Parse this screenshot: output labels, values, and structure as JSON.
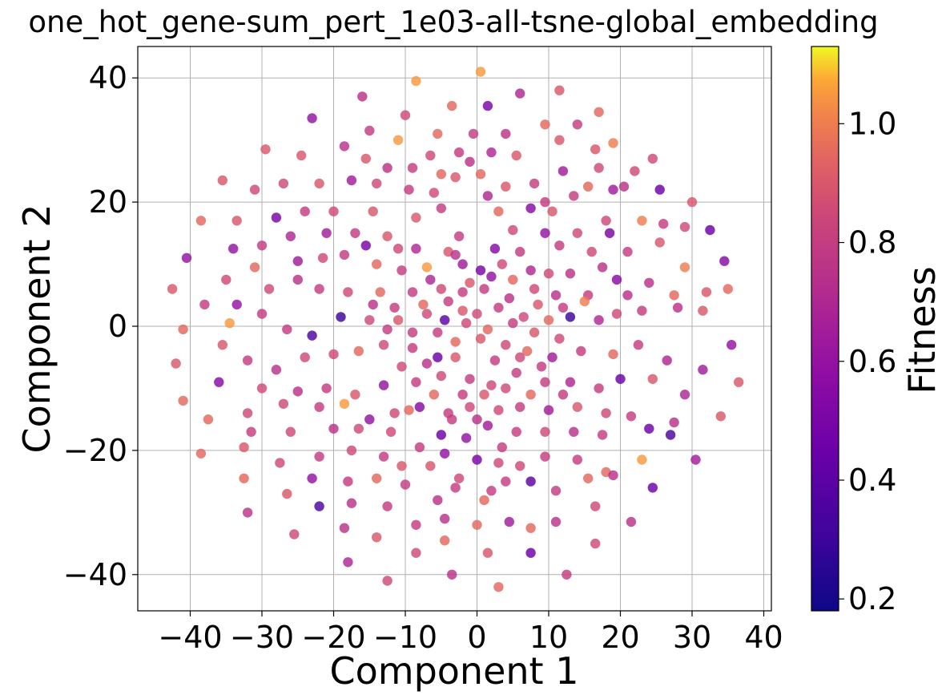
{
  "chart_data": {
    "type": "scatter",
    "title": "one_hot_gene-sum_pert_1e03-all-tsne-global_embedding",
    "xlabel": "Component 1",
    "ylabel": "Component 2",
    "xlim": [
      -47,
      41
    ],
    "ylim": [
      -46,
      45
    ],
    "xticks": [
      -40,
      -30,
      -20,
      -10,
      0,
      10,
      20,
      30,
      40
    ],
    "yticks": [
      -40,
      -20,
      0,
      20,
      40
    ],
    "xtick_labels": [
      "−40",
      "−30",
      "−20",
      "−10",
      "0",
      "10",
      "20",
      "30",
      "40"
    ],
    "ytick_labels": [
      "−40",
      "−20",
      "0",
      "20",
      "40"
    ],
    "grid": true,
    "colorbar": {
      "label": "Fitness",
      "colormap": "plasma",
      "range": [
        0.18,
        1.13
      ],
      "ticks": [
        0.2,
        0.4,
        0.6,
        0.8,
        1.0
      ],
      "tick_labels": [
        "0.2",
        "0.4",
        "0.6",
        "0.8",
        "1.0"
      ]
    },
    "points": [
      [
        0.5,
        41,
        1.05
      ],
      [
        -8.5,
        39.5,
        1.05
      ],
      [
        11.5,
        38,
        0.9
      ],
      [
        6,
        37.5,
        0.7
      ],
      [
        -16,
        37,
        0.75
      ],
      [
        1.5,
        35.5,
        0.5
      ],
      [
        -3.5,
        35.5,
        0.95
      ],
      [
        17,
        34.5,
        0.95
      ],
      [
        -23,
        33.5,
        0.6
      ],
      [
        -10,
        34,
        0.85
      ],
      [
        14,
        32.5,
        0.8
      ],
      [
        9.5,
        32.5,
        0.95
      ],
      [
        -15,
        31.5,
        0.8
      ],
      [
        -5.5,
        31,
        0.95
      ],
      [
        -0.5,
        31,
        0.8
      ],
      [
        4,
        31,
        0.75
      ],
      [
        19,
        29.5,
        1.0
      ],
      [
        -11,
        30,
        1.05
      ],
      [
        11.5,
        30,
        0.9
      ],
      [
        -29.5,
        28.5,
        0.9
      ],
      [
        -6.5,
        27.5,
        0.85
      ],
      [
        -2.5,
        28,
        0.8
      ],
      [
        2,
        28,
        0.7
      ],
      [
        16.5,
        28.5,
        0.9
      ],
      [
        -24.5,
        27.5,
        0.9
      ],
      [
        -18.5,
        29,
        0.75
      ],
      [
        5.5,
        27.5,
        0.9
      ],
      [
        -1,
        26.5,
        0.75
      ],
      [
        -15.5,
        27,
        0.9
      ],
      [
        24.5,
        27,
        0.85
      ],
      [
        -27,
        23,
        0.85
      ],
      [
        -35.5,
        23.5,
        0.9
      ],
      [
        -22,
        23,
        0.9
      ],
      [
        -12.5,
        25.5,
        0.75
      ],
      [
        -9,
        25.5,
        0.8
      ],
      [
        -5,
        24.5,
        0.95
      ],
      [
        0.5,
        24.5,
        0.95
      ],
      [
        12,
        25,
        0.65
      ],
      [
        17,
        25.5,
        0.85
      ],
      [
        22,
        25,
        0.85
      ],
      [
        -17.5,
        23.5,
        0.65
      ],
      [
        -14,
        23,
        0.85
      ],
      [
        -3,
        24,
        0.9
      ],
      [
        4,
        22.5,
        0.9
      ],
      [
        8,
        23,
        0.8
      ],
      [
        15.5,
        22.5,
        0.95
      ],
      [
        20.5,
        22.5,
        0.75
      ],
      [
        25.5,
        22,
        0.45
      ],
      [
        -31,
        22,
        0.85
      ],
      [
        -9.5,
        22,
        0.8
      ],
      [
        -6,
        21.5,
        0.85
      ],
      [
        1.5,
        21,
        0.7
      ],
      [
        9.5,
        20,
        0.8
      ],
      [
        13.5,
        21,
        0.8
      ],
      [
        19,
        22,
        0.65
      ],
      [
        30,
        20,
        0.9
      ],
      [
        -38.5,
        17,
        0.95
      ],
      [
        -33.5,
        17,
        0.9
      ],
      [
        -28,
        17.5,
        0.5
      ],
      [
        -24,
        18.5,
        0.8
      ],
      [
        -20,
        18.5,
        0.85
      ],
      [
        -14.5,
        18.5,
        0.9
      ],
      [
        -8.5,
        17.5,
        0.9
      ],
      [
        -5,
        19,
        0.8
      ],
      [
        3,
        18.5,
        0.95
      ],
      [
        7.5,
        19,
        0.55
      ],
      [
        10.5,
        18.5,
        0.9
      ],
      [
        18,
        17,
        0.85
      ],
      [
        23,
        17,
        1.0
      ],
      [
        26,
        16.5,
        0.8
      ],
      [
        29,
        16,
        0.85
      ],
      [
        -17,
        15,
        0.8
      ],
      [
        -12.5,
        14.5,
        0.9
      ],
      [
        -2.5,
        14.5,
        0.8
      ],
      [
        5,
        15.5,
        0.85
      ],
      [
        9.5,
        15,
        0.6
      ],
      [
        14,
        15,
        0.85
      ],
      [
        18.5,
        15,
        0.5
      ],
      [
        32.5,
        15.5,
        0.45
      ],
      [
        -34,
        12.5,
        0.6
      ],
      [
        -30,
        13,
        0.8
      ],
      [
        -26,
        14.5,
        0.7
      ],
      [
        -21,
        15,
        0.65
      ],
      [
        -15.5,
        13,
        0.5
      ],
      [
        -11,
        12.5,
        0.85
      ],
      [
        -8.5,
        12.5,
        0.7
      ],
      [
        -4,
        12,
        0.9
      ],
      [
        2.5,
        12.5,
        0.55
      ],
      [
        6,
        12,
        0.8
      ],
      [
        11.5,
        13,
        0.8
      ],
      [
        16,
        12,
        0.85
      ],
      [
        21,
        12,
        0.8
      ],
      [
        25.5,
        13.5,
        0.9
      ],
      [
        -40.5,
        11,
        0.6
      ],
      [
        -35,
        7.5,
        0.85
      ],
      [
        -31,
        9.5,
        0.95
      ],
      [
        -25,
        10.5,
        0.65
      ],
      [
        -21.5,
        11,
        0.85
      ],
      [
        -18.5,
        11.5,
        0.8
      ],
      [
        -14,
        10,
        0.95
      ],
      [
        -10.5,
        9,
        0.8
      ],
      [
        -7,
        9.5,
        1.05
      ],
      [
        -2,
        10,
        0.65
      ],
      [
        0.5,
        9,
        0.5
      ],
      [
        3.5,
        10,
        0.85
      ],
      [
        7.5,
        9,
        0.7
      ],
      [
        10,
        8.5,
        0.85
      ],
      [
        13,
        8.5,
        0.75
      ],
      [
        17.5,
        9.5,
        0.75
      ],
      [
        19.5,
        7.5,
        0.55
      ],
      [
        24,
        7,
        0.75
      ],
      [
        29,
        9.5,
        1.0
      ],
      [
        34.5,
        10.5,
        0.55
      ],
      [
        -42.5,
        6,
        0.9
      ],
      [
        -38,
        3.5,
        0.8
      ],
      [
        -33.5,
        3.5,
        0.6
      ],
      [
        -29,
        6,
        0.85
      ],
      [
        -25,
        7.5,
        0.75
      ],
      [
        -22,
        6,
        0.8
      ],
      [
        -18,
        5.5,
        0.85
      ],
      [
        -13.5,
        5.5,
        0.95
      ],
      [
        -9,
        5.5,
        0.8
      ],
      [
        -5,
        6,
        0.85
      ],
      [
        -2,
        5.5,
        0.8
      ],
      [
        1,
        6,
        0.8
      ],
      [
        5,
        7.5,
        0.95
      ],
      [
        8,
        6,
        0.85
      ],
      [
        11,
        5,
        0.75
      ],
      [
        15.5,
        5,
        0.8
      ],
      [
        21,
        5,
        0.75
      ],
      [
        27.5,
        5,
        0.95
      ],
      [
        32,
        5.5,
        0.9
      ],
      [
        35,
        6,
        0.95
      ],
      [
        -34.5,
        0.5,
        1.05
      ],
      [
        -30,
        2,
        0.8
      ],
      [
        -26.5,
        -0.5,
        0.8
      ],
      [
        -23,
        -1.5,
        0.35
      ],
      [
        -19,
        1.5,
        0.3
      ],
      [
        -15,
        1,
        0.85
      ],
      [
        -11,
        1,
        0.9
      ],
      [
        -7,
        2,
        0.85
      ],
      [
        -4.5,
        1,
        0.4
      ],
      [
        -2,
        2.5,
        0.9
      ],
      [
        0,
        2,
        0.85
      ],
      [
        3,
        3,
        0.8
      ],
      [
        6.5,
        1.5,
        0.85
      ],
      [
        10,
        1,
        0.95
      ],
      [
        13,
        1.5,
        0.3
      ],
      [
        17,
        1,
        0.7
      ],
      [
        19.5,
        2,
        0.85
      ],
      [
        23,
        2.5,
        0.8
      ],
      [
        28,
        3,
        0.75
      ],
      [
        31.5,
        2.5,
        0.9
      ],
      [
        -41,
        -0.5,
        0.95
      ],
      [
        -35.5,
        -3,
        0.9
      ],
      [
        -32,
        -5.5,
        0.8
      ],
      [
        -28,
        -7,
        0.75
      ],
      [
        -24,
        -5,
        0.85
      ],
      [
        -20,
        -4.5,
        0.85
      ],
      [
        -16.5,
        -4,
        0.95
      ],
      [
        -13,
        -3,
        0.85
      ],
      [
        -9,
        -3.5,
        0.8
      ],
      [
        -5.5,
        -5,
        0.45
      ],
      [
        -3,
        -2.5,
        0.95
      ],
      [
        0.5,
        -2,
        0.9
      ],
      [
        4,
        -3,
        0.85
      ],
      [
        7,
        -4,
        0.95
      ],
      [
        10.5,
        -5,
        0.65
      ],
      [
        14.5,
        -4,
        0.8
      ],
      [
        19,
        -4.5,
        0.95
      ],
      [
        22.5,
        -3,
        0.8
      ],
      [
        26.5,
        -5.5,
        0.7
      ],
      [
        31.5,
        -7,
        0.65
      ],
      [
        35.5,
        -3,
        0.6
      ],
      [
        -42,
        -6,
        0.9
      ],
      [
        -36,
        -9,
        0.55
      ],
      [
        -30,
        -10,
        0.85
      ],
      [
        -25,
        -10.5,
        0.75
      ],
      [
        -21,
        -10,
        0.8
      ],
      [
        -17,
        -11,
        0.9
      ],
      [
        -13,
        -9.5,
        0.6
      ],
      [
        -8.5,
        -9,
        0.8
      ],
      [
        -5,
        -8,
        0.85
      ],
      [
        -1,
        -8.5,
        0.8
      ],
      [
        2,
        -9.5,
        0.85
      ],
      [
        5.5,
        -7.5,
        0.8
      ],
      [
        9.5,
        -9,
        0.8
      ],
      [
        13,
        -9,
        0.7
      ],
      [
        17,
        -10,
        0.8
      ],
      [
        20,
        -8.5,
        0.45
      ],
      [
        24.5,
        -8.5,
        0.9
      ],
      [
        29,
        -11,
        0.7
      ],
      [
        36.5,
        -9,
        0.9
      ],
      [
        -41,
        -12,
        0.95
      ],
      [
        -32,
        -14,
        0.85
      ],
      [
        -27,
        -12.5,
        0.85
      ],
      [
        -22,
        -13,
        0.8
      ],
      [
        -18.5,
        -12.5,
        1.05
      ],
      [
        -15,
        -15,
        0.6
      ],
      [
        -11.5,
        -14,
        0.85
      ],
      [
        -8,
        -13,
        0.55
      ],
      [
        -4,
        -14,
        0.8
      ],
      [
        -1,
        -13,
        0.85
      ],
      [
        3,
        -13.5,
        0.85
      ],
      [
        6,
        -13,
        0.8
      ],
      [
        10,
        -13.5,
        0.65
      ],
      [
        14,
        -13,
        0.9
      ],
      [
        18,
        -14,
        0.85
      ],
      [
        21.5,
        -14.5,
        0.8
      ],
      [
        27.5,
        -15.5,
        0.75
      ],
      [
        34,
        -14.5,
        0.9
      ],
      [
        -37.5,
        -15,
        0.95
      ],
      [
        -31.5,
        -17,
        0.8
      ],
      [
        -26,
        -17,
        0.85
      ],
      [
        -20,
        -16.5,
        0.75
      ],
      [
        -16.5,
        -16.5,
        0.85
      ],
      [
        -12,
        -17,
        0.85
      ],
      [
        -5,
        -17.5,
        0.45
      ],
      [
        -1.5,
        -18,
        0.6
      ],
      [
        1.5,
        -16,
        0.65
      ],
      [
        5.5,
        -17,
        0.8
      ],
      [
        9.5,
        -17,
        0.85
      ],
      [
        13.5,
        -17,
        0.75
      ],
      [
        17.5,
        -17.5,
        0.8
      ],
      [
        24,
        -16.5,
        0.45
      ],
      [
        27,
        -17.5,
        0.35
      ],
      [
        -38.5,
        -20.5,
        0.95
      ],
      [
        -32.5,
        -19.5,
        0.9
      ],
      [
        -27.5,
        -22,
        0.85
      ],
      [
        -22,
        -21,
        0.8
      ],
      [
        -17.5,
        -20,
        0.85
      ],
      [
        -13,
        -21,
        0.8
      ],
      [
        -8,
        -19.5,
        0.8
      ],
      [
        -4.5,
        -20.5,
        0.6
      ],
      [
        0,
        -21.5,
        0.5
      ],
      [
        3,
        -22,
        0.85
      ],
      [
        6,
        -22.5,
        0.85
      ],
      [
        9.5,
        -21,
        0.8
      ],
      [
        14,
        -21.5,
        0.8
      ],
      [
        18,
        -23.5,
        0.95
      ],
      [
        23,
        -21.5,
        1.05
      ],
      [
        30.5,
        -21.5,
        0.65
      ],
      [
        -32.5,
        -24.5,
        0.95
      ],
      [
        -26.5,
        -27,
        0.9
      ],
      [
        -23,
        -24.5,
        0.6
      ],
      [
        -18,
        -25,
        0.8
      ],
      [
        -14,
        -24.5,
        0.95
      ],
      [
        -10,
        -25.5,
        0.8
      ],
      [
        -5.5,
        -28,
        0.75
      ],
      [
        -3,
        -26,
        0.8
      ],
      [
        1,
        -28,
        0.95
      ],
      [
        4,
        -25,
        0.8
      ],
      [
        7.5,
        -25,
        0.4
      ],
      [
        11,
        -26.5,
        0.8
      ],
      [
        15.5,
        -24.5,
        0.95
      ],
      [
        19,
        -24,
        0.75
      ],
      [
        24.5,
        -26,
        0.45
      ],
      [
        -32,
        -30,
        0.75
      ],
      [
        -22,
        -29,
        0.35
      ],
      [
        -17.5,
        -28.5,
        0.75
      ],
      [
        -12.5,
        -29,
        0.8
      ],
      [
        -8.5,
        -32,
        0.8
      ],
      [
        -4.5,
        -31,
        0.75
      ],
      [
        0,
        -32,
        0.95
      ],
      [
        4.5,
        -31.5,
        0.65
      ],
      [
        7.5,
        -32.5,
        0.95
      ],
      [
        11,
        -31.5,
        0.75
      ],
      [
        16.5,
        -29,
        0.85
      ],
      [
        21.5,
        -31.5,
        0.75
      ],
      [
        -25.5,
        -33.5,
        0.85
      ],
      [
        -18.5,
        -32.5,
        0.75
      ],
      [
        -14,
        -34,
        0.9
      ],
      [
        -8.5,
        -36.5,
        0.85
      ],
      [
        -4.5,
        -34.5,
        0.95
      ],
      [
        1.5,
        -36.5,
        0.9
      ],
      [
        7.5,
        -36.5,
        0.45
      ],
      [
        16.5,
        -35,
        0.85
      ],
      [
        -18,
        -38,
        0.7
      ],
      [
        -12.5,
        -41,
        0.85
      ],
      [
        -3.5,
        -40,
        0.75
      ],
      [
        3,
        -42,
        0.95
      ],
      [
        12.5,
        -40,
        0.8
      ],
      [
        -3,
        11.5,
        0.75
      ],
      [
        -6.5,
        7.5,
        0.7
      ],
      [
        -1,
        7,
        0.9
      ],
      [
        2,
        8,
        0.6
      ],
      [
        4.5,
        4.5,
        0.75
      ],
      [
        -4,
        4,
        0.8
      ],
      [
        -7.5,
        3.5,
        0.95
      ],
      [
        -11.5,
        3,
        0.8
      ],
      [
        -14.5,
        3.5,
        0.75
      ],
      [
        8.5,
        3.5,
        0.9
      ],
      [
        12,
        3,
        0.8
      ],
      [
        15,
        4,
        1.0
      ],
      [
        -1.5,
        0.5,
        0.85
      ],
      [
        1.5,
        -0.5,
        0.95
      ],
      [
        5,
        0.5,
        0.8
      ],
      [
        8,
        -1,
        0.9
      ],
      [
        -5.5,
        -1,
        0.8
      ],
      [
        -9,
        -1,
        0.8
      ],
      [
        -12.5,
        -0.5,
        0.8
      ],
      [
        11.5,
        -2,
        0.85
      ],
      [
        -3,
        -5,
        0.9
      ],
      [
        2.5,
        -5.5,
        0.8
      ],
      [
        6,
        -5,
        0.85
      ],
      [
        -7,
        -6,
        0.75
      ],
      [
        -10.5,
        -6.5,
        0.85
      ],
      [
        9,
        -6.5,
        0.8
      ],
      [
        -2,
        -11,
        0.8
      ],
      [
        1,
        -11,
        0.9
      ],
      [
        4,
        -10,
        0.85
      ],
      [
        -6,
        -11,
        0.95
      ],
      [
        7.5,
        -11,
        0.95
      ],
      [
        -9.5,
        -13.5,
        0.95
      ],
      [
        12,
        -11,
        0.8
      ],
      [
        -3.5,
        -15,
        0.8
      ],
      [
        0,
        -15,
        0.75
      ],
      [
        3.5,
        -19.5,
        0.8
      ],
      [
        -6.5,
        -22.5,
        0.9
      ],
      [
        -10.5,
        -22.5,
        0.9
      ],
      [
        -2.5,
        -24.5,
        0.85
      ],
      [
        2,
        -26.5,
        0.8
      ]
    ]
  }
}
